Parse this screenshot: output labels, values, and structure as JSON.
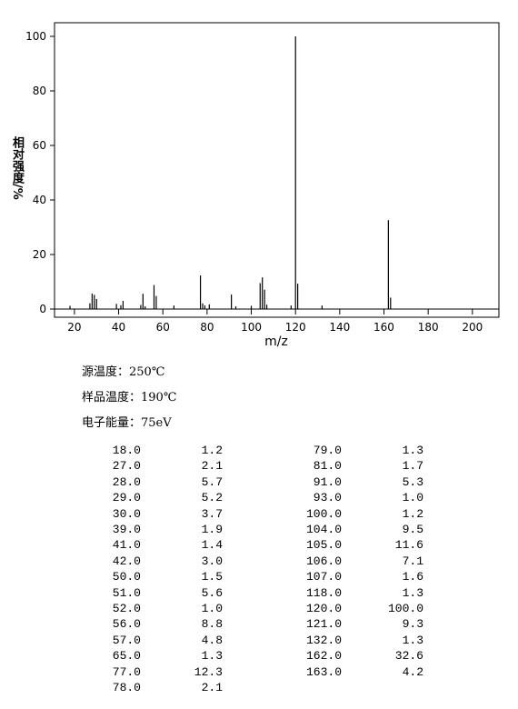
{
  "chart_data": {
    "type": "stem",
    "y_label": "相对强度/%",
    "x_label": "m/z",
    "x": [
      18,
      27,
      28,
      29,
      30,
      39,
      41,
      42,
      50,
      51,
      52,
      56,
      57,
      65,
      77,
      78,
      79,
      81,
      91,
      93,
      100,
      104,
      105,
      106,
      107,
      118,
      120,
      121,
      132,
      162,
      163
    ],
    "values": [
      1.2,
      2.1,
      5.7,
      5.2,
      3.7,
      1.9,
      1.4,
      3.0,
      1.5,
      5.6,
      1.0,
      8.8,
      4.8,
      1.3,
      12.3,
      2.1,
      1.3,
      1.7,
      5.3,
      1.0,
      1.2,
      9.5,
      11.6,
      7.1,
      1.6,
      1.3,
      100.0,
      9.3,
      1.3,
      32.6,
      4.2
    ],
    "color": "#000000",
    "xlim": [
      11,
      212
    ],
    "ylim": [
      -3,
      105
    ],
    "xticks": [
      20,
      40,
      60,
      80,
      100,
      120,
      140,
      160,
      180,
      200
    ],
    "yticks": [
      0,
      20,
      40,
      60,
      80,
      100
    ]
  },
  "conditions": [
    "源温度：250℃",
    "样品温度：190℃",
    "电子能量：75eV"
  ],
  "peak_table": {
    "left": [
      [
        "18.0",
        "1.2"
      ],
      [
        "27.0",
        "2.1"
      ],
      [
        "28.0",
        "5.7"
      ],
      [
        "29.0",
        "5.2"
      ],
      [
        "30.0",
        "3.7"
      ],
      [
        "39.0",
        "1.9"
      ],
      [
        "41.0",
        "1.4"
      ],
      [
        "42.0",
        "3.0"
      ],
      [
        "50.0",
        "1.5"
      ],
      [
        "51.0",
        "5.6"
      ],
      [
        "52.0",
        "1.0"
      ],
      [
        "56.0",
        "8.8"
      ],
      [
        "57.0",
        "4.8"
      ],
      [
        "65.0",
        "1.3"
      ],
      [
        "77.0",
        "12.3"
      ],
      [
        "78.0",
        "2.1"
      ]
    ],
    "right": [
      [
        "79.0",
        "1.3"
      ],
      [
        "81.0",
        "1.7"
      ],
      [
        "91.0",
        "5.3"
      ],
      [
        "93.0",
        "1.0"
      ],
      [
        "100.0",
        "1.2"
      ],
      [
        "104.0",
        "9.5"
      ],
      [
        "105.0",
        "11.6"
      ],
      [
        "106.0",
        "7.1"
      ],
      [
        "107.0",
        "1.6"
      ],
      [
        "118.0",
        "1.3"
      ],
      [
        "120.0",
        "100.0"
      ],
      [
        "121.0",
        "9.3"
      ],
      [
        "132.0",
        "1.3"
      ],
      [
        "162.0",
        "32.6"
      ],
      [
        "163.0",
        "4.2"
      ]
    ]
  }
}
